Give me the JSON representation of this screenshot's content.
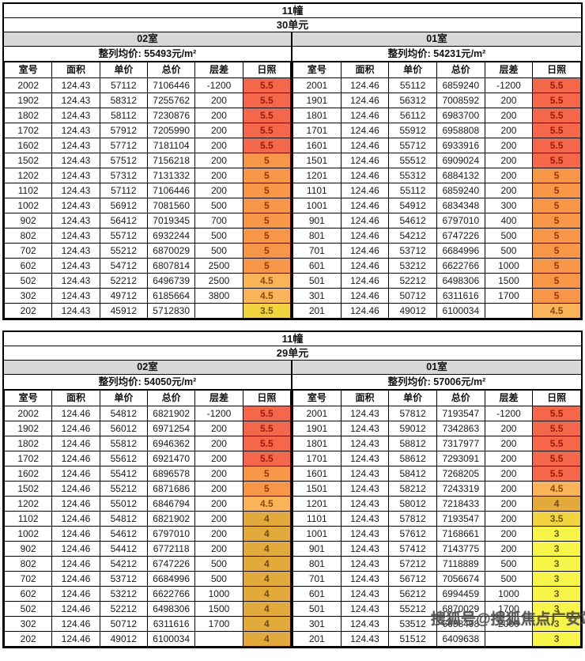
{
  "watermark": "搜狐号@搜狐焦点广安站",
  "columns": [
    "室号",
    "面积",
    "单价",
    "总价",
    "层差",
    "日照"
  ],
  "sunshine_colors": {
    "5.5": {
      "bg": "#f4674a",
      "fg": "#9a1a05"
    },
    "5": {
      "bg": "#f79646",
      "fg": "#993305"
    },
    "4.5": {
      "bg": "#f9b45a",
      "fg": "#8a4a00"
    },
    "4": {
      "bg": "#e2a93b",
      "fg": "#6b4a00"
    },
    "3.5": {
      "bg": "#f2d43f",
      "fg": "#6b5a00"
    },
    "3": {
      "bg": "#f8f549",
      "fg": "#5c5c10"
    }
  },
  "sections": [
    {
      "building": "11幢",
      "unit": "30单元",
      "halves": [
        {
          "room": "02室",
          "avg_label": "整列均价: 55493元/m²",
          "rows": [
            [
              "2002",
              "124.43",
              "57112",
              "7106446",
              "-1200",
              "5.5"
            ],
            [
              "1902",
              "124.43",
              "58312",
              "7255762",
              "200",
              "5.5"
            ],
            [
              "1802",
              "124.43",
              "58112",
              "7230876",
              "200",
              "5.5"
            ],
            [
              "1702",
              "124.43",
              "57912",
              "7205990",
              "200",
              "5.5"
            ],
            [
              "1602",
              "124.43",
              "57712",
              "7181104",
              "200",
              "5.5"
            ],
            [
              "1502",
              "124.43",
              "57512",
              "7156218",
              "200",
              "5"
            ],
            [
              "1202",
              "124.43",
              "57312",
              "7131332",
              "200",
              "5"
            ],
            [
              "1102",
              "124.43",
              "57112",
              "7106446",
              "200",
              "5"
            ],
            [
              "1002",
              "124.43",
              "56912",
              "7081560",
              "500",
              "5"
            ],
            [
              "902",
              "124.43",
              "56412",
              "7019345",
              "700",
              "5"
            ],
            [
              "802",
              "124.43",
              "55712",
              "6932244",
              "500",
              "5"
            ],
            [
              "702",
              "124.43",
              "55212",
              "6870029",
              "500",
              "5"
            ],
            [
              "602",
              "124.43",
              "54712",
              "6807814",
              "2500",
              "5"
            ],
            [
              "502",
              "124.43",
              "52212",
              "6496739",
              "2500",
              "4.5"
            ],
            [
              "302",
              "124.43",
              "49712",
              "6185664",
              "3800",
              "4.5"
            ],
            [
              "202",
              "124.43",
              "45912",
              "5712830",
              "",
              "3.5"
            ]
          ]
        },
        {
          "room": "01室",
          "avg_label": "整列均价: 54231元/m²",
          "rows": [
            [
              "2001",
              "124.46",
              "55112",
              "6859240",
              "-1200",
              "5.5"
            ],
            [
              "1901",
              "124.46",
              "56312",
              "7008592",
              "200",
              "5.5"
            ],
            [
              "1801",
              "124.46",
              "56112",
              "6983700",
              "200",
              "5.5"
            ],
            [
              "1701",
              "124.46",
              "55912",
              "6958808",
              "200",
              "5.5"
            ],
            [
              "1601",
              "124.46",
              "55712",
              "6933916",
              "200",
              "5.5"
            ],
            [
              "1501",
              "124.46",
              "55512",
              "6909024",
              "200",
              "5.5"
            ],
            [
              "1201",
              "124.46",
              "55312",
              "6884132",
              "200",
              "5"
            ],
            [
              "1101",
              "124.46",
              "55112",
              "6859240",
              "200",
              "5"
            ],
            [
              "1001",
              "124.46",
              "54912",
              "6834348",
              "300",
              "5"
            ],
            [
              "901",
              "124.46",
              "54612",
              "6797010",
              "400",
              "5"
            ],
            [
              "801",
              "124.46",
              "54212",
              "6747226",
              "500",
              "5"
            ],
            [
              "701",
              "124.46",
              "53712",
              "6684996",
              "500",
              "5"
            ],
            [
              "601",
              "124.46",
              "53212",
              "6622766",
              "1000",
              "5"
            ],
            [
              "501",
              "124.46",
              "52212",
              "6498306",
              "1500",
              "5"
            ],
            [
              "301",
              "124.46",
              "50712",
              "6311616",
              "1700",
              "5"
            ],
            [
              "201",
              "124.46",
              "49012",
              "6100034",
              "",
              "4.5"
            ]
          ]
        }
      ]
    },
    {
      "building": "11幢",
      "unit": "29单元",
      "halves": [
        {
          "room": "02室",
          "avg_label": "整列均价: 54050元/m²",
          "rows": [
            [
              "2002",
              "124.46",
              "54812",
              "6821902",
              "-1200",
              "5.5"
            ],
            [
              "1902",
              "124.46",
              "56012",
              "6971254",
              "200",
              "5.5"
            ],
            [
              "1802",
              "124.46",
              "55812",
              "6946362",
              "200",
              "5.5"
            ],
            [
              "1702",
              "124.46",
              "55612",
              "6921470",
              "200",
              "5.5"
            ],
            [
              "1602",
              "124.46",
              "55412",
              "6896578",
              "200",
              "5"
            ],
            [
              "1502",
              "124.46",
              "55212",
              "6871686",
              "200",
              "5"
            ],
            [
              "1202",
              "124.46",
              "55012",
              "6846794",
              "200",
              "4.5"
            ],
            [
              "1102",
              "124.46",
              "54812",
              "6821902",
              "200",
              "4"
            ],
            [
              "1002",
              "124.46",
              "54612",
              "6797010",
              "200",
              "4"
            ],
            [
              "902",
              "124.46",
              "54412",
              "6772118",
              "200",
              "4"
            ],
            [
              "802",
              "124.46",
              "54212",
              "6747226",
              "500",
              "4"
            ],
            [
              "702",
              "124.46",
              "53712",
              "6684996",
              "500",
              "4"
            ],
            [
              "602",
              "124.46",
              "53212",
              "6622766",
              "1000",
              "4"
            ],
            [
              "502",
              "124.46",
              "52212",
              "6498306",
              "1500",
              "4"
            ],
            [
              "302",
              "124.46",
              "50712",
              "6311616",
              "1700",
              "4"
            ],
            [
              "202",
              "124.46",
              "49012",
              "6100034",
              "",
              "4"
            ]
          ]
        },
        {
          "room": "01室",
          "avg_label": "整列均价: 57006元/m²",
          "rows": [
            [
              "2001",
              "124.43",
              "57812",
              "7193547",
              "-1200",
              "5.5"
            ],
            [
              "1901",
              "124.43",
              "59012",
              "7342863",
              "200",
              "5.5"
            ],
            [
              "1801",
              "124.43",
              "58812",
              "7317977",
              "200",
              "5.5"
            ],
            [
              "1701",
              "124.43",
              "58612",
              "7293091",
              "200",
              "5.5"
            ],
            [
              "1601",
              "124.43",
              "58412",
              "7268205",
              "200",
              "5.5"
            ],
            [
              "1501",
              "124.43",
              "58212",
              "7243319",
              "200",
              "4.5"
            ],
            [
              "1201",
              "124.43",
              "58012",
              "7218433",
              "200",
              "4"
            ],
            [
              "1101",
              "124.43",
              "57812",
              "7193547",
              "200",
              "3.5"
            ],
            [
              "1001",
              "124.43",
              "57612",
              "7168661",
              "200",
              "3"
            ],
            [
              "901",
              "124.43",
              "57412",
              "7143775",
              "200",
              "3"
            ],
            [
              "801",
              "124.43",
              "57212",
              "7118889",
              "500",
              "3"
            ],
            [
              "701",
              "124.43",
              "56712",
              "7056674",
              "500",
              "3"
            ],
            [
              "601",
              "124.43",
              "56212",
              "6994459",
              "1000",
              "3"
            ],
            [
              "501",
              "124.43",
              "55212",
              "6870029",
              "1700",
              "3"
            ],
            [
              "301",
              "124.43",
              "53512",
              "6658498",
              "2000",
              "3"
            ],
            [
              "201",
              "124.43",
              "51512",
              "6409638",
              "",
              "3"
            ]
          ]
        }
      ]
    }
  ]
}
